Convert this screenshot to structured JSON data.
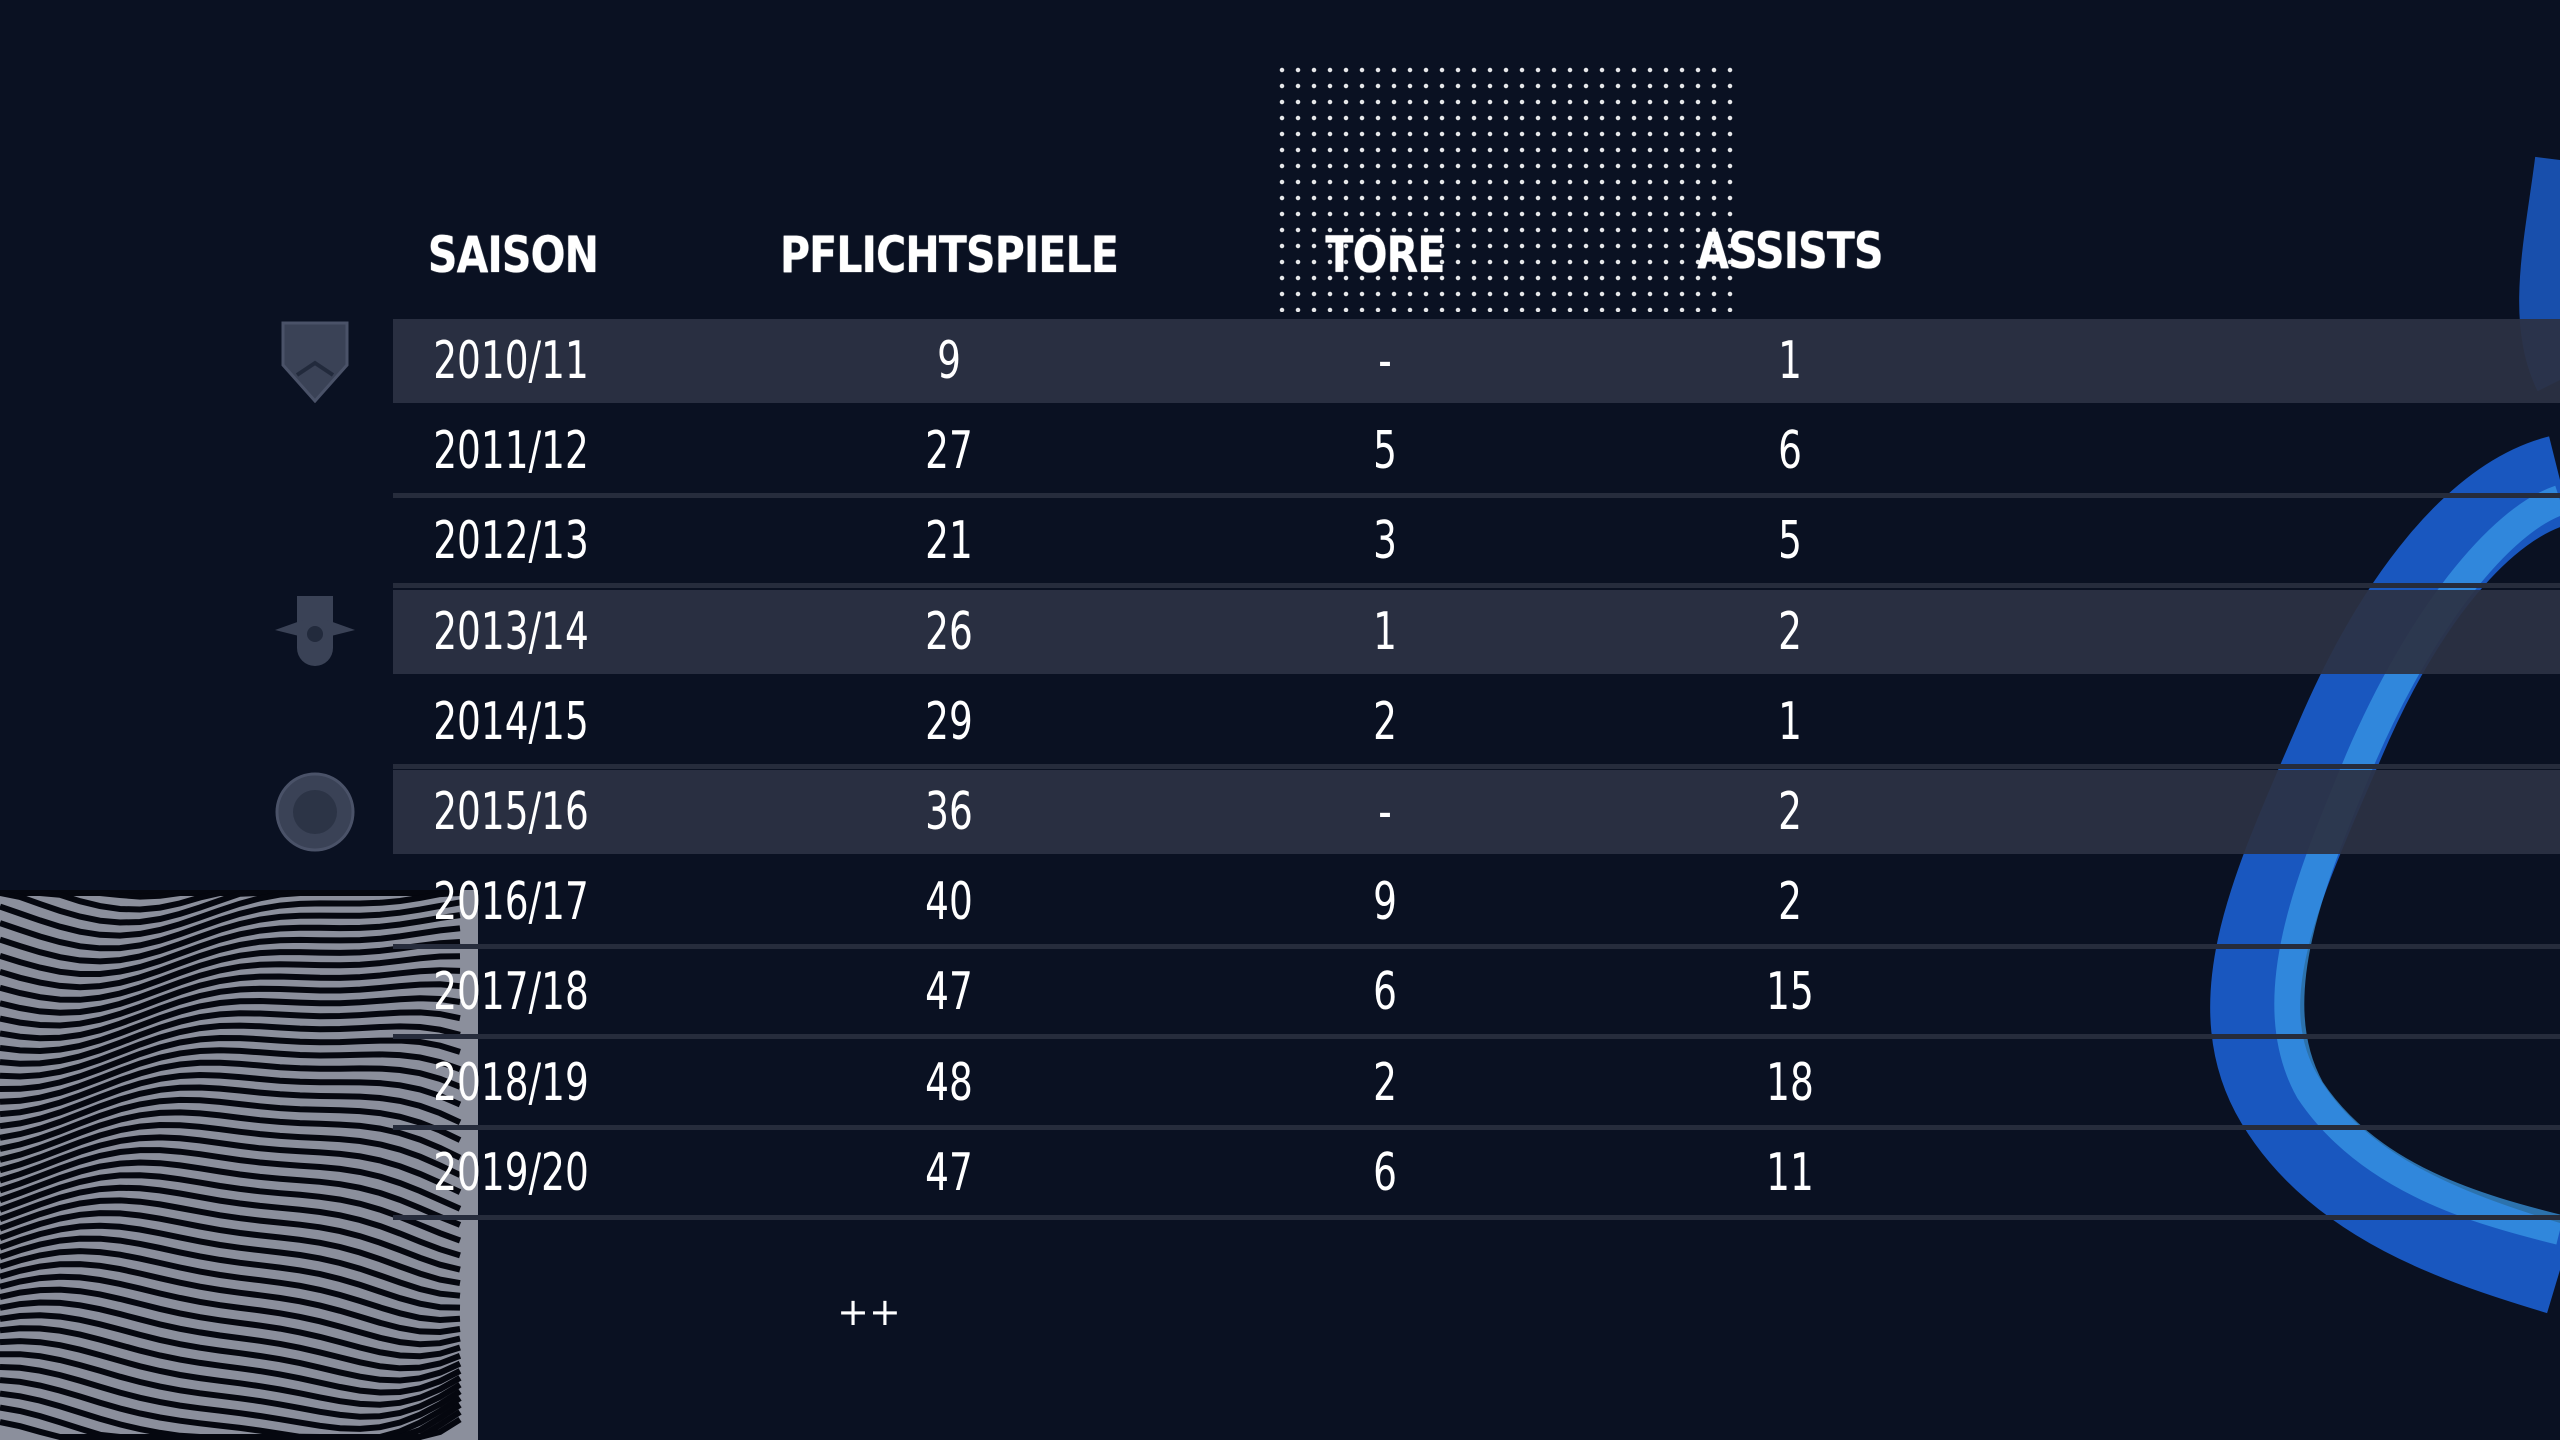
{
  "table": {
    "headers": [
      "SAISON",
      "PFLICHTSPIELE",
      "TORE",
      "ASSISTS"
    ],
    "rows": [
      {
        "saison": "2010/11",
        "spiele": "9",
        "tore": "-",
        "assists": "1",
        "shaded": true,
        "club": "vfb-stuttgart"
      },
      {
        "saison": "2011/12",
        "spiele": "27",
        "tore": "5",
        "assists": "6",
        "shaded": false
      },
      {
        "saison": "2012/13",
        "spiele": "21",
        "tore": "3",
        "assists": "5",
        "shaded": false
      },
      {
        "saison": "2013/14",
        "spiele": "26",
        "tore": "1",
        "assists": "2",
        "shaded": true,
        "club": "rb-leipzig"
      },
      {
        "saison": "2014/15",
        "spiele": "29",
        "tore": "2",
        "assists": "1",
        "shaded": false
      },
      {
        "saison": "2015/16",
        "spiele": "36",
        "tore": "-",
        "assists": "2",
        "shaded": true,
        "club": "fc-bayern"
      },
      {
        "saison": "2016/17",
        "spiele": "40",
        "tore": "9",
        "assists": "2",
        "shaded": false
      },
      {
        "saison": "2017/18",
        "spiele": "47",
        "tore": "6",
        "assists": "15",
        "shaded": false
      },
      {
        "saison": "2018/19",
        "spiele": "48",
        "tore": "2",
        "assists": "18",
        "shaded": false
      },
      {
        "saison": "2019/20",
        "spiele": "47",
        "tore": "6",
        "assists": "11",
        "shaded": false
      }
    ]
  },
  "footnote": "++",
  "colors": {
    "background": "#0a1122",
    "row_shade": "#2c3244",
    "accent_blue": "#1e6fe0"
  }
}
